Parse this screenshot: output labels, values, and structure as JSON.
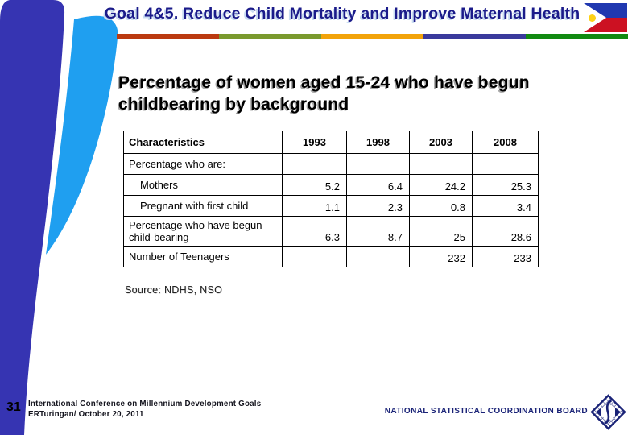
{
  "header": {
    "title": "Goal 4&5. Reduce Child Mortality and Improve Maternal Health",
    "bar_colors": [
      "#bb3a10",
      "#7a9a2e",
      "#f2a30a",
      "#3a3a9c",
      "#118a11"
    ],
    "flag": {
      "blue": "#2038b0",
      "red": "#cc1122",
      "sun": "#fdd116"
    },
    "deco_colors": {
      "dark_wedge": "#3634b2",
      "light_wedge": "#1f9ff0"
    }
  },
  "content": {
    "title": "Percentage of women aged 15-24 who have begun childbearing by background",
    "table": {
      "columns": [
        "Characteristics",
        "1993",
        "1998",
        "2003",
        "2008"
      ],
      "rows": [
        {
          "label": "Percentage who are:",
          "indent": false,
          "values": [
            "",
            "",
            "",
            ""
          ]
        },
        {
          "label": "Mothers",
          "indent": true,
          "values": [
            "5.2",
            "6.4",
            "24.2",
            "25.3"
          ]
        },
        {
          "label": "Pregnant with first child",
          "indent": true,
          "values": [
            "1.1",
            "2.3",
            "0.8",
            "3.4"
          ]
        },
        {
          "label": "Percentage who have begun child-bearing",
          "indent": false,
          "values": [
            "6.3",
            "8.7",
            "25",
            "28.6"
          ]
        },
        {
          "label": "Number of Teenagers",
          "indent": false,
          "values": [
            "",
            "",
            "232",
            "233"
          ]
        }
      ]
    },
    "source": "Source: NDHS, NSO"
  },
  "footer": {
    "page_number": "31",
    "conference_line1": "International Conference on Millennium Development Goals",
    "conference_line2": "ERTuringan/ October 20, 2011",
    "organization": "NATIONAL STATISTICAL COORDINATION BOARD",
    "org_color": "#1a2377"
  }
}
